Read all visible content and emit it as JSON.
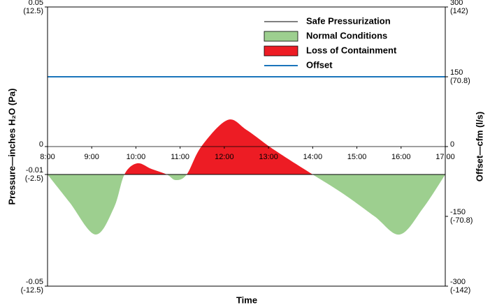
{
  "chart_data": {
    "type": "area",
    "xlabel": "Time",
    "ylabel": "Pressure—inches H₂O (Pa)",
    "y2label": "Offset—cfm (l/s)",
    "xlim": [
      8,
      17
    ],
    "xticks": [
      {
        "value": 8,
        "label": "8:00"
      },
      {
        "value": 9,
        "label": "9:00"
      },
      {
        "value": 10,
        "label": "10:00"
      },
      {
        "value": 11,
        "label": "11:00"
      },
      {
        "value": 12,
        "label": "12:00"
      },
      {
        "value": 13,
        "label": "13:00"
      },
      {
        "value": 14,
        "label": "14:00"
      },
      {
        "value": 15,
        "label": "15:00"
      },
      {
        "value": 16,
        "label": "16:00"
      },
      {
        "value": 17,
        "label": "17:00"
      }
    ],
    "ylim": [
      -0.05,
      0.05
    ],
    "yticks": [
      {
        "value": 0.05,
        "label": "0.05",
        "sublabel": "(12.5)"
      },
      0,
      {
        "value": -0.01,
        "label": "-0.01",
        "sublabel": "(-2.5)"
      },
      {
        "value": -0.05,
        "label": "-0.05",
        "sublabel": "(-12.5)"
      }
    ],
    "y2lim": [
      -300,
      300
    ],
    "y2ticks": [
      {
        "value": 300,
        "label": "300",
        "sublabel": "(142)"
      },
      {
        "value": 150,
        "label": "150",
        "sublabel": "(70.8)"
      },
      0,
      {
        "value": -150,
        "label": "-150",
        "sublabel": "(-70.8)"
      },
      {
        "value": -300,
        "label": "-300",
        "sublabel": "(-142)"
      }
    ],
    "series": [
      {
        "name": "Safe Pressurization",
        "color": "#000000",
        "value": -0.01
      },
      {
        "name": "Normal Conditions",
        "color": "#9dcf8f"
      },
      {
        "name": "Loss of Containment",
        "color": "#ed1c24"
      },
      {
        "name": "Offset",
        "color": "#1b75bb",
        "value": 150,
        "axis": "y2"
      }
    ],
    "pressure": {
      "x": [
        8,
        8.5,
        9.08,
        9.5,
        9.74,
        10.03,
        10.35,
        10.7,
        10.9,
        11.15,
        11.48,
        12.07,
        12.5,
        13.02,
        13.5,
        14,
        14.7,
        15.4,
        15.97,
        16.5,
        17
      ],
      "values": [
        -0.01,
        -0.02,
        -0.0315,
        -0.022,
        -0.01,
        -0.006,
        -0.008,
        -0.01,
        -0.012,
        -0.01,
        0,
        0.0095,
        0.006,
        0,
        -0.005,
        -0.01,
        -0.017,
        -0.025,
        -0.0315,
        -0.022,
        -0.01
      ]
    }
  }
}
